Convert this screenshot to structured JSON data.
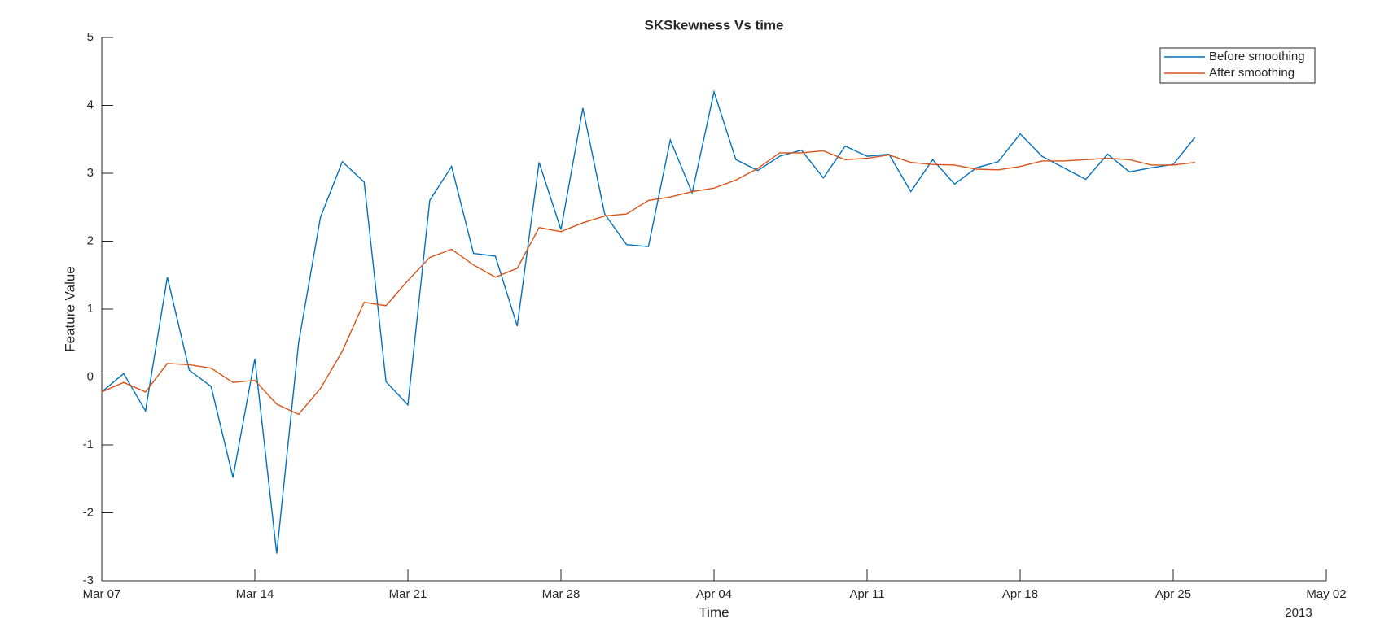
{
  "chart_data": {
    "type": "line",
    "title": "SKSkewness Vs time",
    "x_label": "Time",
    "y_label": "Feature Value",
    "x_year_label": "2013",
    "x": [
      "2013-03-07",
      "2013-03-08",
      "2013-03-09",
      "2013-03-10",
      "2013-03-11",
      "2013-03-12",
      "2013-03-13",
      "2013-03-14",
      "2013-03-15",
      "2013-03-16",
      "2013-03-17",
      "2013-03-18",
      "2013-03-19",
      "2013-03-20",
      "2013-03-21",
      "2013-03-22",
      "2013-03-23",
      "2013-03-24",
      "2013-03-25",
      "2013-03-26",
      "2013-03-27",
      "2013-03-28",
      "2013-03-29",
      "2013-03-30",
      "2013-03-31",
      "2013-04-01",
      "2013-04-02",
      "2013-04-03",
      "2013-04-04",
      "2013-04-05",
      "2013-04-06",
      "2013-04-07",
      "2013-04-08",
      "2013-04-09",
      "2013-04-10",
      "2013-04-11",
      "2013-04-12",
      "2013-04-13",
      "2013-04-14",
      "2013-04-15",
      "2013-04-16",
      "2013-04-17",
      "2013-04-18",
      "2013-04-19",
      "2013-04-20",
      "2013-04-21",
      "2013-04-22",
      "2013-04-23",
      "2013-04-24",
      "2013-04-25",
      "2013-04-26"
    ],
    "series": [
      {
        "name": "Before smoothing",
        "color": "#0072bd",
        "values": [
          -0.22,
          0.05,
          -0.5,
          1.47,
          0.1,
          -0.14,
          -1.48,
          0.27,
          -2.6,
          0.5,
          2.35,
          3.17,
          2.87,
          -0.07,
          -0.41,
          2.6,
          3.1,
          1.82,
          1.78,
          0.75,
          3.16,
          2.17,
          3.96,
          2.4,
          1.95,
          1.92,
          3.49,
          2.71,
          4.2,
          3.2,
          3.04,
          3.25,
          3.34,
          2.93,
          3.4,
          3.25,
          3.28,
          2.73,
          3.2,
          2.84,
          3.08,
          3.17,
          3.58,
          3.25,
          3.08,
          2.91,
          3.28,
          3.02,
          3.08,
          3.13,
          3.53
        ]
      },
      {
        "name": "After smoothing",
        "color": "#d95319",
        "values": [
          -0.22,
          -0.08,
          -0.22,
          0.2,
          0.18,
          0.13,
          -0.08,
          -0.05,
          -0.4,
          -0.55,
          -0.17,
          0.38,
          1.1,
          1.05,
          1.42,
          1.76,
          1.88,
          1.65,
          1.47,
          1.6,
          2.2,
          2.14,
          2.27,
          2.37,
          2.4,
          2.6,
          2.65,
          2.73,
          2.78,
          2.9,
          3.07,
          3.3,
          3.3,
          3.33,
          3.2,
          3.22,
          3.27,
          3.16,
          3.13,
          3.12,
          3.06,
          3.05,
          3.1,
          3.18,
          3.18,
          3.2,
          3.22,
          3.2,
          3.12,
          3.12,
          3.16
        ]
      }
    ],
    "xlim": [
      "2013-03-07",
      "2013-05-02"
    ],
    "xticks": [
      {
        "value": "2013-03-07",
        "label": "Mar 07"
      },
      {
        "value": "2013-03-14",
        "label": "Mar 14"
      },
      {
        "value": "2013-03-21",
        "label": "Mar 21"
      },
      {
        "value": "2013-03-28",
        "label": "Mar 28"
      },
      {
        "value": "2013-04-04",
        "label": "Apr 04"
      },
      {
        "value": "2013-04-11",
        "label": "Apr 11"
      },
      {
        "value": "2013-04-18",
        "label": "Apr 18"
      },
      {
        "value": "2013-04-25",
        "label": "Apr 25"
      },
      {
        "value": "2013-05-02",
        "label": "May 02"
      }
    ],
    "ylim": [
      -3,
      5
    ],
    "yticks": [
      -3,
      -2,
      -1,
      0,
      1,
      2,
      3,
      4,
      5
    ],
    "grid": false,
    "legend": "upper right"
  }
}
